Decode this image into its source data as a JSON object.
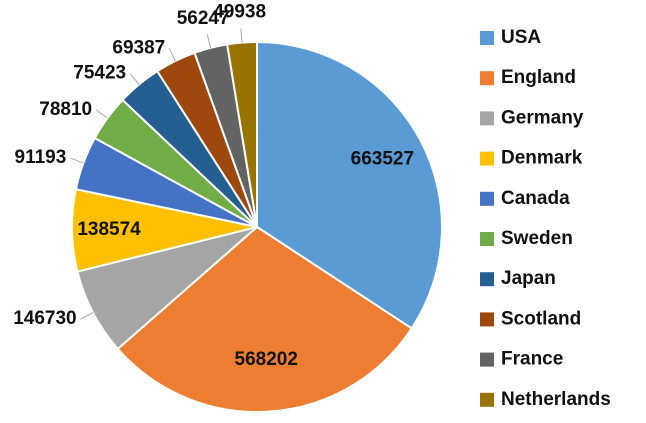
{
  "chart_data": {
    "type": "pie",
    "categories": [
      "USA",
      "England",
      "Germany",
      "Denmark",
      "Canada",
      "Sweden",
      "Japan",
      "Scotland",
      "France",
      "Netherlands"
    ],
    "values": [
      663527,
      568202,
      146730,
      138574,
      91193,
      78810,
      75423,
      69387,
      56247,
      49938
    ],
    "colors": [
      "#5b9bd5",
      "#ed7d31",
      "#a5a5a5",
      "#ffc000",
      "#4472c4",
      "#70ad47",
      "#255e91",
      "#9e480e",
      "#636363",
      "#997300"
    ],
    "legend": "right"
  }
}
